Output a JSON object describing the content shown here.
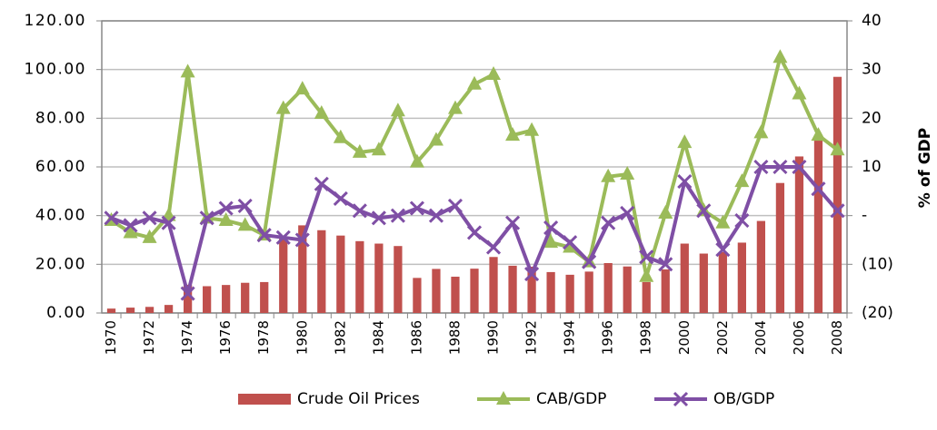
{
  "chart_data": {
    "type": "combo",
    "y2label": "% of GDP",
    "categories": [
      "1970",
      null,
      "1972",
      null,
      "1974",
      null,
      "1976",
      null,
      "1978",
      null,
      "1980",
      null,
      "1982",
      null,
      "1984",
      null,
      "1986",
      null,
      "1988",
      null,
      "1990",
      null,
      "1992",
      null,
      "1994",
      null,
      "1996",
      null,
      "1998",
      null,
      "2000",
      null,
      "2002",
      null,
      "2004",
      null,
      "2006",
      null,
      "2008"
    ],
    "series": [
      {
        "name": "Crude Oil Prices",
        "type": "bar",
        "color": "#c0504d",
        "axis": "y",
        "values": [
          1.8,
          2.2,
          2.5,
          3.3,
          11.6,
          11.0,
          11.5,
          12.4,
          12.7,
          31,
          36,
          34,
          31.8,
          29.5,
          28.5,
          27.5,
          14.4,
          18.1,
          14.9,
          18.2,
          23,
          19.4,
          19,
          16.8,
          15.7,
          17,
          20.5,
          19.1,
          12.7,
          17.9,
          28.5,
          24.4,
          25,
          28.9,
          37.8,
          53.4,
          64.3,
          71,
          97
        ]
      },
      {
        "name": "CAB/GDP",
        "type": "line",
        "marker": "triangle",
        "color": "#9bbb59",
        "axis": "y2",
        "values": [
          -1,
          -3.5,
          -4.5,
          0,
          29.5,
          -0.5,
          -1,
          -2,
          -4,
          22,
          26,
          21,
          16,
          13,
          13.5,
          21.5,
          11,
          15.5,
          22,
          27,
          29,
          16.5,
          17.5,
          -5.5,
          -6.5,
          -9.5,
          8,
          8.5,
          -12.5,
          0.5,
          15,
          1,
          -1.5,
          7,
          17,
          32.5,
          25,
          16.5,
          13.5
        ]
      },
      {
        "name": "OB/GDP",
        "type": "line",
        "marker": "x",
        "color": "#7f4fa5",
        "axis": "y2",
        "values": [
          -0.5,
          -2,
          -0.5,
          -1.5,
          -16,
          -0.5,
          1.5,
          2,
          -4,
          -4.5,
          -5,
          6.5,
          3.5,
          1,
          -0.5,
          0,
          1.5,
          0,
          2,
          -3.5,
          -6.5,
          -1.5,
          -12,
          -2.5,
          -5.5,
          -9.5,
          -1.5,
          0.5,
          -8.5,
          -10,
          7,
          1,
          -7,
          -1,
          10,
          10,
          10,
          5.5,
          1
        ]
      }
    ],
    "ylim": [
      0,
      120
    ],
    "yticks": [
      {
        "value": 0,
        "label": "0.00"
      },
      {
        "value": 20,
        "label": "20.00"
      },
      {
        "value": 40,
        "label": "40.00"
      },
      {
        "value": 60,
        "label": "60.00"
      },
      {
        "value": 80,
        "label": "80.00"
      },
      {
        "value": 100,
        "label": "100.00"
      },
      {
        "value": 120,
        "label": "120.00"
      }
    ],
    "y2lim": [
      -20,
      40
    ],
    "y2ticks": [
      {
        "value": -20,
        "label": "(20)"
      },
      {
        "value": -10,
        "label": "(10)"
      },
      {
        "value": 0,
        "label": "-"
      },
      10,
      20,
      30,
      40
    ],
    "grid": true
  }
}
